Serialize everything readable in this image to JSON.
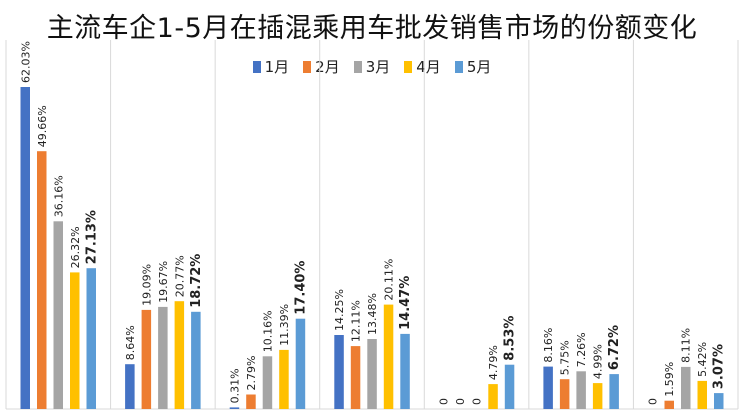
{
  "chart_data": {
    "type": "bar",
    "title": "主流车企1-5月在插混乘用车批发销售市场的份额变化",
    "xlabel": "",
    "ylabel": "",
    "ylim": [
      0,
      63
    ],
    "grid": "vertical-separators",
    "legend_position": "top-center",
    "categories": [
      "",
      "",
      "",
      "",
      "",
      "",
      ""
    ],
    "series": [
      {
        "name": "1月",
        "color": "#4472C4",
        "values": [
          62.03,
          8.64,
          0.31,
          14.25,
          0,
          8.16,
          0
        ],
        "labels": [
          "62.03%",
          "8.64%",
          "0.31%",
          "14.25%",
          "0",
          "8.16%",
          "0"
        ]
      },
      {
        "name": "2月",
        "color": "#ED7D31",
        "values": [
          49.66,
          19.09,
          2.79,
          12.11,
          0,
          5.75,
          1.59
        ],
        "labels": [
          "49.66%",
          "19.09%",
          "2.79%",
          "12.11%",
          "0",
          "5.75%",
          "1.59%"
        ]
      },
      {
        "name": "3月",
        "color": "#A5A5A5",
        "values": [
          36.16,
          19.67,
          10.16,
          13.48,
          0,
          7.26,
          8.11
        ],
        "labels": [
          "36.16%",
          "19.67%",
          "10.16%",
          "13.48%",
          "0",
          "7.26%",
          "8.11%"
        ]
      },
      {
        "name": "4月",
        "color": "#FFC000",
        "values": [
          26.32,
          20.77,
          11.39,
          20.11,
          4.79,
          4.99,
          5.42
        ],
        "labels": [
          "26.32%",
          "20.77%",
          "11.39%",
          "20.11%",
          "4.79%",
          "4.99%",
          "5.42%"
        ]
      },
      {
        "name": "5月",
        "color": "#5B9BD5",
        "bold_labels": true,
        "values": [
          27.13,
          18.72,
          17.4,
          14.47,
          8.53,
          6.72,
          3.07
        ],
        "labels": [
          "27.13%",
          "18.72%",
          "17.40%",
          "14.47%",
          "8.53%",
          "6.72%",
          "3.07%"
        ]
      }
    ]
  }
}
